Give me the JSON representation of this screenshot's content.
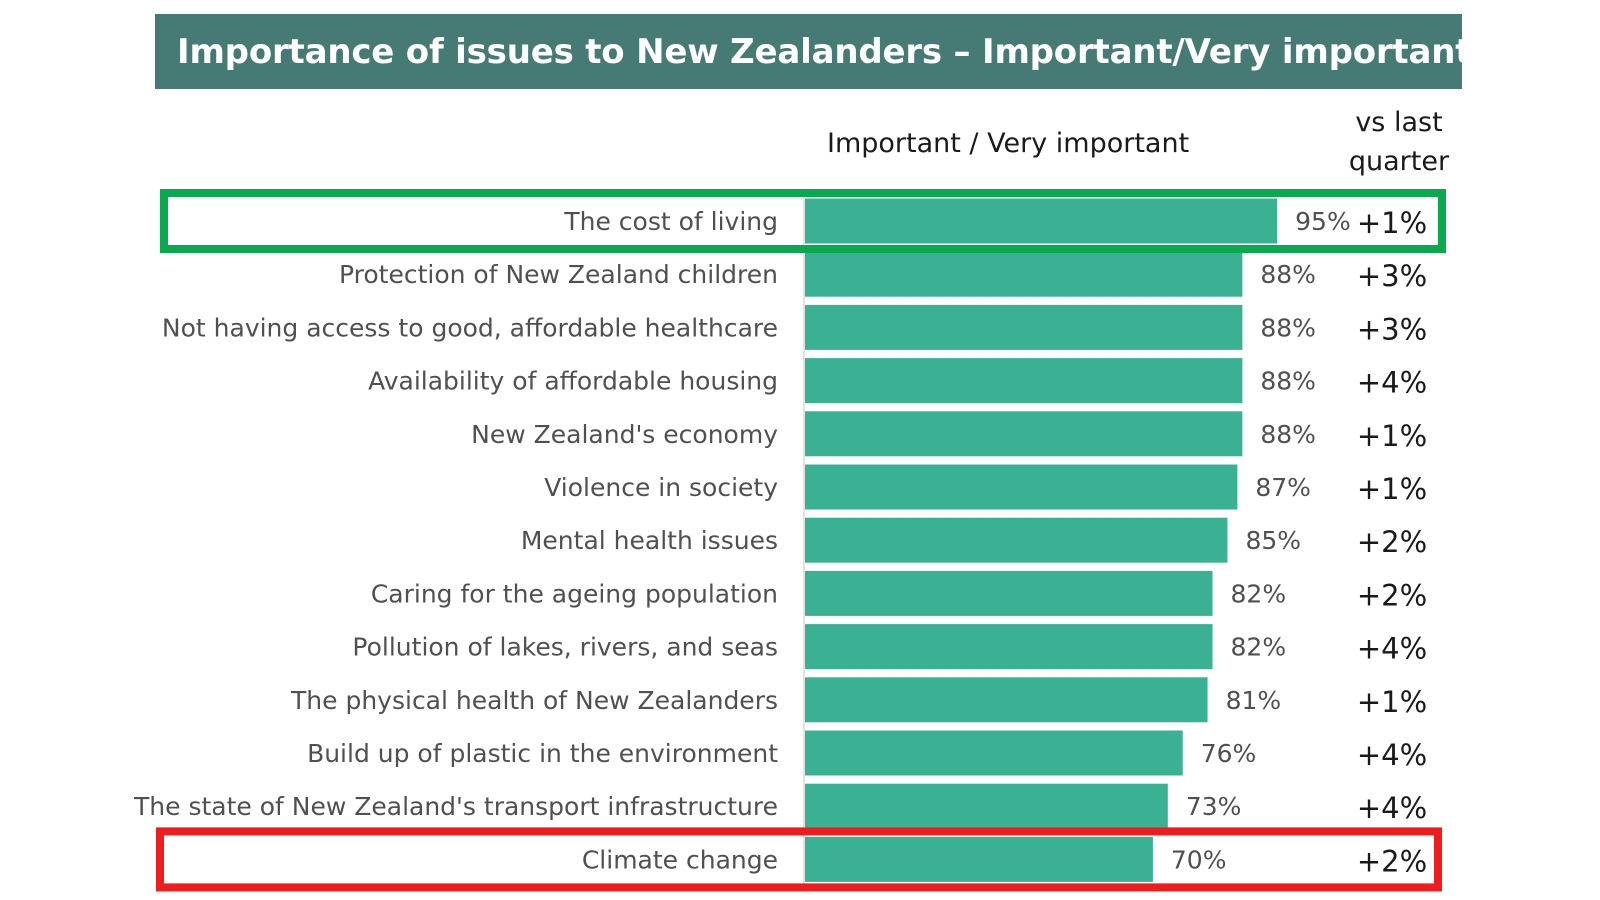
{
  "chart_data": {
    "type": "bar",
    "orientation": "horizontal",
    "title": "Importance of issues to New Zealanders – Important/Very important",
    "value_header": "Important / Very important",
    "change_header": "vs last quarter",
    "xlim": [
      0,
      100
    ],
    "grid": false,
    "bar_color": "#3bb193",
    "categories": [
      "The cost of living",
      "Protection of New Zealand children",
      "Not having access to good, affordable healthcare",
      "Availability of affordable housing",
      "New Zealand's economy",
      "Violence in society",
      "Mental health issues",
      "Caring for the ageing population",
      "Pollution of lakes, rivers, and seas",
      "The physical health of New Zealanders",
      "Build up of plastic in the environment",
      "The state of New Zealand's transport infrastructure",
      "Climate change"
    ],
    "values": [
      95,
      88,
      88,
      88,
      88,
      87,
      85,
      82,
      82,
      81,
      76,
      73,
      70
    ],
    "value_labels": [
      "95%",
      "88%",
      "88%",
      "88%",
      "88%",
      "87%",
      "85%",
      "82%",
      "82%",
      "81%",
      "76%",
      "73%",
      "70%"
    ],
    "changes": [
      "+1%",
      "+3%",
      "+3%",
      "+4%",
      "+1%",
      "+1%",
      "+2%",
      "+2%",
      "+4%",
      "+1%",
      "+4%",
      "+4%",
      "+2%"
    ],
    "highlights": [
      {
        "category": "The cost of living",
        "color": "#0aa84f"
      },
      {
        "category": "Climate change",
        "color": "#ee1c1c"
      }
    ]
  },
  "colors": {
    "title_bar": "#467a74",
    "title_text": "#ffffff",
    "bar": "#3bb193",
    "highlight_top": "#0aa84f",
    "highlight_bottom": "#ee1c1c",
    "category_text": "#505050",
    "value_text": "#505050",
    "change_text": "#1a1a1a"
  }
}
